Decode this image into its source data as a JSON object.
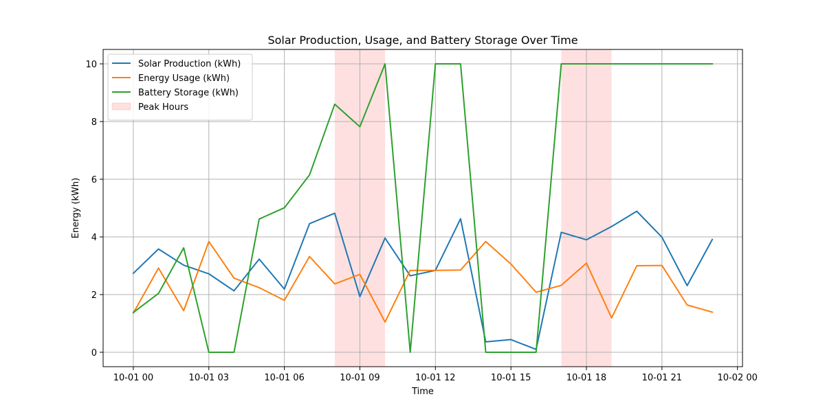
{
  "chart_data": {
    "type": "line",
    "title": "Solar Production, Usage, and Battery Storage Over Time",
    "xlabel": "Time",
    "ylabel": "Energy (kWh)",
    "x": [
      0,
      1,
      2,
      3,
      4,
      5,
      6,
      7,
      8,
      9,
      10,
      11,
      12,
      13,
      14,
      15,
      16,
      17,
      18,
      19,
      20,
      21,
      22,
      23
    ],
    "x_unit": "hour of 10-01",
    "xlim": [
      -1.2,
      24.2
    ],
    "ylim": [
      -0.5,
      10.5
    ],
    "x_ticks": [
      {
        "value": 0,
        "label": "10-01 00"
      },
      {
        "value": 3,
        "label": "10-01 03"
      },
      {
        "value": 6,
        "label": "10-01 06"
      },
      {
        "value": 9,
        "label": "10-01 09"
      },
      {
        "value": 12,
        "label": "10-01 12"
      },
      {
        "value": 15,
        "label": "10-01 15"
      },
      {
        "value": 18,
        "label": "10-01 18"
      },
      {
        "value": 21,
        "label": "10-01 21"
      },
      {
        "value": 24,
        "label": "10-02 00"
      }
    ],
    "y_ticks": [
      {
        "value": 0,
        "label": "0"
      },
      {
        "value": 2,
        "label": "2"
      },
      {
        "value": 4,
        "label": "4"
      },
      {
        "value": 6,
        "label": "6"
      },
      {
        "value": 8,
        "label": "8"
      },
      {
        "value": 10,
        "label": "10"
      }
    ],
    "grid": true,
    "legend_position": "top-left",
    "series": [
      {
        "name": "Solar Production (kWh)",
        "color": "#1f77b4",
        "values": [
          2.74,
          3.58,
          3.02,
          2.72,
          2.13,
          3.23,
          2.19,
          4.46,
          4.82,
          1.93,
          3.96,
          2.65,
          2.84,
          4.63,
          0.36,
          0.44,
          0.1,
          4.16,
          3.9,
          4.36,
          4.89,
          3.99,
          2.31,
          3.91
        ]
      },
      {
        "name": "Energy Usage (kWh)",
        "color": "#ff7f0e",
        "values": [
          1.36,
          2.92,
          1.44,
          3.84,
          2.57,
          2.24,
          1.8,
          3.32,
          2.37,
          2.7,
          1.05,
          2.84,
          2.84,
          2.85,
          3.84,
          3.06,
          2.08,
          2.32,
          3.09,
          1.19,
          3.0,
          3.01,
          1.64,
          1.39
        ]
      },
      {
        "name": "Battery Storage (kWh)",
        "color": "#2ca02c",
        "values": [
          1.38,
          2.04,
          3.62,
          0.0,
          0.0,
          4.62,
          5.01,
          6.15,
          8.6,
          7.82,
          10.0,
          0.0,
          10.0,
          10.0,
          0.0,
          0.0,
          0.0,
          10.0,
          10.0,
          10.0,
          10.0,
          10.0,
          10.0,
          10.0
        ]
      }
    ],
    "shaded_regions": [
      {
        "name": "Peak Hours",
        "x_start": 8,
        "x_end": 10,
        "color": "#ff0000",
        "opacity": 0.12
      },
      {
        "name": "Peak Hours",
        "x_start": 17,
        "x_end": 19,
        "color": "#ff0000",
        "opacity": 0.12
      }
    ],
    "legend": [
      {
        "label": "Solar Production (kWh)",
        "kind": "line",
        "color": "#1f77b4"
      },
      {
        "label": "Energy Usage (kWh)",
        "kind": "line",
        "color": "#ff7f0e"
      },
      {
        "label": "Battery Storage (kWh)",
        "kind": "line",
        "color": "#2ca02c"
      },
      {
        "label": "Peak Hours",
        "kind": "patch",
        "color": "#ff0000"
      }
    ]
  }
}
